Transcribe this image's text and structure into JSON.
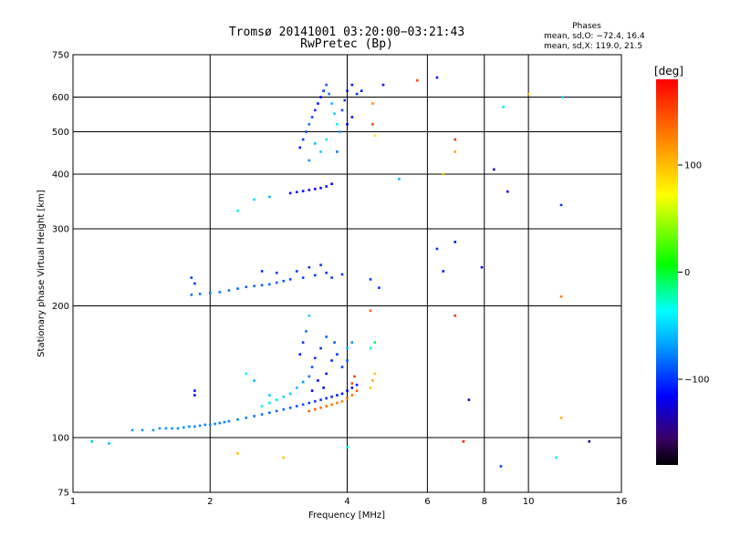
{
  "header": {
    "title_line1": "Tromsø 20141001 03:20:00−03:21:43",
    "title_line2": "RwPretec (Bp)",
    "stats_title": "Phases",
    "stats_o": "mean, sd,O: −72.4, 16.4",
    "stats_x": "mean, sd,X: 119.0, 21.5"
  },
  "colorbar": {
    "unit_label": "[deg]",
    "ticks": [
      {
        "value": 100,
        "label": "100"
      },
      {
        "value": 0,
        "label": "0"
      },
      {
        "value": -100,
        "label": "−100"
      }
    ],
    "range": [
      -180,
      180
    ]
  },
  "chart_data": {
    "type": "scatter",
    "xlabel": "Frequency [MHz]",
    "ylabel": "Stationary phase Virtual Height [km]",
    "x_scale": "log2",
    "y_scale": "log",
    "xlim": [
      1,
      16
    ],
    "ylim": [
      75,
      750
    ],
    "x_ticks": [
      {
        "value": 1,
        "label": "1"
      },
      {
        "value": 2,
        "label": "2"
      },
      {
        "value": 4,
        "label": "4"
      },
      {
        "value": 6,
        "label": "6"
      },
      {
        "value": 8,
        "label": "8"
      },
      {
        "value": 10,
        "label": "10"
      },
      {
        "value": 16,
        "label": "16"
      }
    ],
    "y_ticks": [
      {
        "value": 75,
        "label": "75"
      },
      {
        "value": 100,
        "label": "100"
      },
      {
        "value": 200,
        "label": "200"
      },
      {
        "value": 300,
        "label": "300"
      },
      {
        "value": 400,
        "label": "400"
      },
      {
        "value": 500,
        "label": "500"
      },
      {
        "value": 600,
        "label": "600"
      },
      {
        "value": 750,
        "label": "750"
      }
    ],
    "grid": true,
    "color_variable": "phase [deg]",
    "points": [
      {
        "x": 1.1,
        "y": 98,
        "phase": -60
      },
      {
        "x": 1.2,
        "y": 97,
        "phase": -60
      },
      {
        "x": 1.35,
        "y": 104,
        "phase": -70
      },
      {
        "x": 1.42,
        "y": 104,
        "phase": -70
      },
      {
        "x": 1.5,
        "y": 104,
        "phase": -70
      },
      {
        "x": 1.55,
        "y": 105,
        "phase": -72
      },
      {
        "x": 1.6,
        "y": 105,
        "phase": -72
      },
      {
        "x": 1.65,
        "y": 105,
        "phase": -72
      },
      {
        "x": 1.7,
        "y": 105,
        "phase": -73
      },
      {
        "x": 1.75,
        "y": 105.5,
        "phase": -73
      },
      {
        "x": 1.8,
        "y": 106,
        "phase": -74
      },
      {
        "x": 1.85,
        "y": 106,
        "phase": -74
      },
      {
        "x": 1.9,
        "y": 106.5,
        "phase": -75
      },
      {
        "x": 1.95,
        "y": 107,
        "phase": -75
      },
      {
        "x": 2.0,
        "y": 107,
        "phase": -75
      },
      {
        "x": 2.05,
        "y": 107.5,
        "phase": -75
      },
      {
        "x": 2.1,
        "y": 108,
        "phase": -76
      },
      {
        "x": 2.15,
        "y": 108.5,
        "phase": -76
      },
      {
        "x": 2.2,
        "y": 109,
        "phase": -76
      },
      {
        "x": 2.3,
        "y": 110,
        "phase": -78
      },
      {
        "x": 2.4,
        "y": 111,
        "phase": -78
      },
      {
        "x": 2.5,
        "y": 112,
        "phase": -80
      },
      {
        "x": 2.6,
        "y": 113,
        "phase": -82
      },
      {
        "x": 2.7,
        "y": 114,
        "phase": -84
      },
      {
        "x": 2.8,
        "y": 115,
        "phase": -85
      },
      {
        "x": 2.9,
        "y": 116,
        "phase": -86
      },
      {
        "x": 3.0,
        "y": 117,
        "phase": -88
      },
      {
        "x": 3.1,
        "y": 118,
        "phase": -90
      },
      {
        "x": 3.2,
        "y": 119,
        "phase": -92
      },
      {
        "x": 3.3,
        "y": 120,
        "phase": -95
      },
      {
        "x": 3.4,
        "y": 121,
        "phase": -98
      },
      {
        "x": 3.5,
        "y": 122,
        "phase": -100
      },
      {
        "x": 3.6,
        "y": 123,
        "phase": -102
      },
      {
        "x": 3.7,
        "y": 124,
        "phase": -105
      },
      {
        "x": 3.8,
        "y": 125,
        "phase": -108
      },
      {
        "x": 3.9,
        "y": 126,
        "phase": -110
      },
      {
        "x": 4.0,
        "y": 128,
        "phase": -112
      },
      {
        "x": 4.1,
        "y": 130,
        "phase": -115
      },
      {
        "x": 4.2,
        "y": 132,
        "phase": -112
      },
      {
        "x": 2.6,
        "y": 118,
        "phase": -40
      },
      {
        "x": 2.7,
        "y": 120,
        "phase": -40
      },
      {
        "x": 2.8,
        "y": 122,
        "phase": -45
      },
      {
        "x": 2.9,
        "y": 124,
        "phase": -50
      },
      {
        "x": 3.0,
        "y": 126,
        "phase": -55
      },
      {
        "x": 3.1,
        "y": 130,
        "phase": -60
      },
      {
        "x": 3.2,
        "y": 134,
        "phase": -70
      },
      {
        "x": 3.3,
        "y": 138,
        "phase": -80
      },
      {
        "x": 3.35,
        "y": 145,
        "phase": -90
      },
      {
        "x": 3.4,
        "y": 152,
        "phase": -100
      },
      {
        "x": 3.5,
        "y": 160,
        "phase": -105
      },
      {
        "x": 3.2,
        "y": 165,
        "phase": -100
      },
      {
        "x": 3.25,
        "y": 175,
        "phase": -80
      },
      {
        "x": 3.3,
        "y": 190,
        "phase": -50
      },
      {
        "x": 3.15,
        "y": 155,
        "phase": -110
      },
      {
        "x": 3.45,
        "y": 135,
        "phase": -115
      },
      {
        "x": 3.6,
        "y": 140,
        "phase": -110
      },
      {
        "x": 3.7,
        "y": 150,
        "phase": -105
      },
      {
        "x": 3.8,
        "y": 155,
        "phase": -100
      },
      {
        "x": 3.9,
        "y": 145,
        "phase": -95
      },
      {
        "x": 4.0,
        "y": 150,
        "phase": -90
      },
      {
        "x": 3.75,
        "y": 165,
        "phase": -90
      },
      {
        "x": 3.6,
        "y": 170,
        "phase": -85
      },
      {
        "x": 3.55,
        "y": 130,
        "phase": -118
      },
      {
        "x": 3.35,
        "y": 128,
        "phase": -120
      },
      {
        "x": 3.3,
        "y": 115,
        "phase": 140
      },
      {
        "x": 3.4,
        "y": 116,
        "phase": 140
      },
      {
        "x": 3.5,
        "y": 117,
        "phase": 138
      },
      {
        "x": 3.6,
        "y": 118,
        "phase": 135
      },
      {
        "x": 3.7,
        "y": 119,
        "phase": 130
      },
      {
        "x": 3.8,
        "y": 120,
        "phase": 128
      },
      {
        "x": 3.9,
        "y": 121,
        "phase": 125
      },
      {
        "x": 4.0,
        "y": 123,
        "phase": 130
      },
      {
        "x": 4.1,
        "y": 125,
        "phase": 135
      },
      {
        "x": 4.2,
        "y": 128,
        "phase": 140
      },
      {
        "x": 4.1,
        "y": 133,
        "phase": 150
      },
      {
        "x": 4.15,
        "y": 138,
        "phase": 155
      },
      {
        "x": 4.5,
        "y": 130,
        "phase": 100
      },
      {
        "x": 4.55,
        "y": 135,
        "phase": 110
      },
      {
        "x": 4.6,
        "y": 140,
        "phase": 95
      },
      {
        "x": 4.5,
        "y": 160,
        "phase": -20
      },
      {
        "x": 4.6,
        "y": 165,
        "phase": -10
      },
      {
        "x": 4.5,
        "y": 195,
        "phase": 140
      },
      {
        "x": 4.0,
        "y": 160,
        "phase": -60
      },
      {
        "x": 4.1,
        "y": 165,
        "phase": -70
      },
      {
        "x": 2.4,
        "y": 140,
        "phase": -40
      },
      {
        "x": 2.5,
        "y": 135,
        "phase": -60
      },
      {
        "x": 2.7,
        "y": 125,
        "phase": -50
      },
      {
        "x": 1.85,
        "y": 125,
        "phase": -110
      },
      {
        "x": 1.85,
        "y": 128,
        "phase": -110
      },
      {
        "x": 2.3,
        "y": 92,
        "phase": 100
      },
      {
        "x": 2.9,
        "y": 90,
        "phase": 100
      },
      {
        "x": 7.2,
        "y": 98,
        "phase": 170
      },
      {
        "x": 8.7,
        "y": 86,
        "phase": -100
      },
      {
        "x": 11.5,
        "y": 90,
        "phase": -40
      },
      {
        "x": 13.6,
        "y": 98,
        "phase": -140
      },
      {
        "x": 11.8,
        "y": 111,
        "phase": 110
      },
      {
        "x": 7.4,
        "y": 122,
        "phase": -130
      },
      {
        "x": 4.0,
        "y": 95,
        "phase": -40
      },
      {
        "x": 1.82,
        "y": 212,
        "phase": -80
      },
      {
        "x": 1.9,
        "y": 213,
        "phase": -80
      },
      {
        "x": 2.0,
        "y": 214,
        "phase": -80
      },
      {
        "x": 2.1,
        "y": 215,
        "phase": -80
      },
      {
        "x": 2.2,
        "y": 217,
        "phase": -82
      },
      {
        "x": 2.3,
        "y": 219,
        "phase": -84
      },
      {
        "x": 2.4,
        "y": 221,
        "phase": -85
      },
      {
        "x": 2.5,
        "y": 222,
        "phase": -85
      },
      {
        "x": 2.6,
        "y": 223,
        "phase": -86
      },
      {
        "x": 2.7,
        "y": 224,
        "phase": -86
      },
      {
        "x": 2.8,
        "y": 226,
        "phase": -88
      },
      {
        "x": 2.9,
        "y": 228,
        "phase": -90
      },
      {
        "x": 3.0,
        "y": 230,
        "phase": -92
      },
      {
        "x": 3.2,
        "y": 232,
        "phase": -95
      },
      {
        "x": 3.4,
        "y": 235,
        "phase": -98
      },
      {
        "x": 3.6,
        "y": 238,
        "phase": -100
      },
      {
        "x": 1.82,
        "y": 232,
        "phase": -100
      },
      {
        "x": 1.85,
        "y": 225,
        "phase": -100
      },
      {
        "x": 2.6,
        "y": 240,
        "phase": -100
      },
      {
        "x": 2.8,
        "y": 238,
        "phase": -100
      },
      {
        "x": 3.1,
        "y": 240,
        "phase": -100
      },
      {
        "x": 3.3,
        "y": 245,
        "phase": -100
      },
      {
        "x": 3.5,
        "y": 248,
        "phase": -100
      },
      {
        "x": 3.7,
        "y": 232,
        "phase": -100
      },
      {
        "x": 3.9,
        "y": 236,
        "phase": -100
      },
      {
        "x": 4.5,
        "y": 230,
        "phase": -100
      },
      {
        "x": 4.7,
        "y": 220,
        "phase": -100
      },
      {
        "x": 2.3,
        "y": 330,
        "phase": -30
      },
      {
        "x": 2.5,
        "y": 350,
        "phase": -50
      },
      {
        "x": 2.7,
        "y": 355,
        "phase": -60
      },
      {
        "x": 3.0,
        "y": 362,
        "phase": -110
      },
      {
        "x": 3.1,
        "y": 364,
        "phase": -110
      },
      {
        "x": 3.2,
        "y": 366,
        "phase": -112
      },
      {
        "x": 3.3,
        "y": 368,
        "phase": -112
      },
      {
        "x": 3.4,
        "y": 370,
        "phase": -115
      },
      {
        "x": 3.5,
        "y": 372,
        "phase": -115
      },
      {
        "x": 3.6,
        "y": 375,
        "phase": -115
      },
      {
        "x": 3.7,
        "y": 380,
        "phase": -118
      },
      {
        "x": 3.15,
        "y": 460,
        "phase": -110
      },
      {
        "x": 3.2,
        "y": 480,
        "phase": -100
      },
      {
        "x": 3.25,
        "y": 500,
        "phase": -90
      },
      {
        "x": 3.3,
        "y": 520,
        "phase": -80
      },
      {
        "x": 3.35,
        "y": 540,
        "phase": -95
      },
      {
        "x": 3.4,
        "y": 560,
        "phase": -100
      },
      {
        "x": 3.45,
        "y": 580,
        "phase": -110
      },
      {
        "x": 3.5,
        "y": 600,
        "phase": -115
      },
      {
        "x": 3.55,
        "y": 620,
        "phase": -100
      },
      {
        "x": 3.6,
        "y": 640,
        "phase": -90
      },
      {
        "x": 3.65,
        "y": 610,
        "phase": -80
      },
      {
        "x": 3.7,
        "y": 580,
        "phase": -60
      },
      {
        "x": 3.75,
        "y": 550,
        "phase": -50
      },
      {
        "x": 3.8,
        "y": 520,
        "phase": -40
      },
      {
        "x": 3.85,
        "y": 500,
        "phase": -70
      },
      {
        "x": 3.9,
        "y": 560,
        "phase": -90
      },
      {
        "x": 3.95,
        "y": 590,
        "phase": -100
      },
      {
        "x": 4.0,
        "y": 620,
        "phase": -110
      },
      {
        "x": 4.1,
        "y": 640,
        "phase": -110
      },
      {
        "x": 3.4,
        "y": 470,
        "phase": -60
      },
      {
        "x": 3.5,
        "y": 450,
        "phase": -50
      },
      {
        "x": 3.6,
        "y": 480,
        "phase": -40
      },
      {
        "x": 3.3,
        "y": 430,
        "phase": -70
      },
      {
        "x": 3.8,
        "y": 450,
        "phase": -80
      },
      {
        "x": 4.0,
        "y": 520,
        "phase": -120
      },
      {
        "x": 4.1,
        "y": 540,
        "phase": -110
      },
      {
        "x": 4.2,
        "y": 610,
        "phase": -100
      },
      {
        "x": 4.3,
        "y": 620,
        "phase": -110
      },
      {
        "x": 4.55,
        "y": 580,
        "phase": 120
      },
      {
        "x": 4.55,
        "y": 520,
        "phase": 150
      },
      {
        "x": 4.6,
        "y": 490,
        "phase": 80
      },
      {
        "x": 4.8,
        "y": 640,
        "phase": -110
      },
      {
        "x": 5.7,
        "y": 655,
        "phase": 150
      },
      {
        "x": 6.3,
        "y": 665,
        "phase": -110
      },
      {
        "x": 10.0,
        "y": 610,
        "phase": 100
      },
      {
        "x": 11.9,
        "y": 600,
        "phase": -50
      },
      {
        "x": 8.8,
        "y": 570,
        "phase": -40
      },
      {
        "x": 6.9,
        "y": 480,
        "phase": 160
      },
      {
        "x": 6.9,
        "y": 450,
        "phase": 110
      },
      {
        "x": 6.5,
        "y": 400,
        "phase": 100
      },
      {
        "x": 8.4,
        "y": 410,
        "phase": -140
      },
      {
        "x": 9.0,
        "y": 365,
        "phase": -120
      },
      {
        "x": 11.8,
        "y": 340,
        "phase": -100
      },
      {
        "x": 5.2,
        "y": 390,
        "phase": -60
      },
      {
        "x": 6.3,
        "y": 270,
        "phase": -100
      },
      {
        "x": 6.9,
        "y": 280,
        "phase": -110
      },
      {
        "x": 6.5,
        "y": 240,
        "phase": -110
      },
      {
        "x": 7.9,
        "y": 245,
        "phase": -120
      },
      {
        "x": 11.8,
        "y": 210,
        "phase": 130
      },
      {
        "x": 6.9,
        "y": 190,
        "phase": 160
      }
    ]
  }
}
